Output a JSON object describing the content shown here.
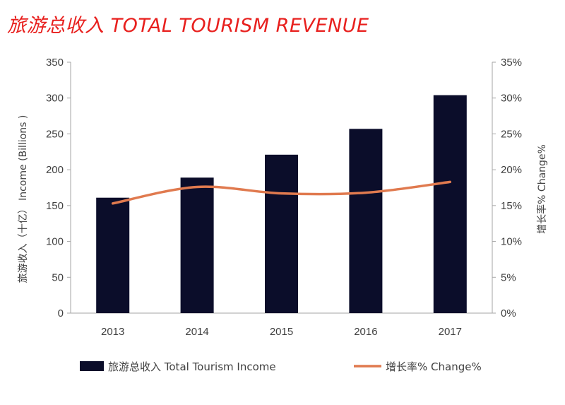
{
  "header": {
    "title": "旅游总收入 TOTAL TOURISM REVENUE"
  },
  "colors": {
    "title": "#e8201e",
    "bar": "#0b0d2a",
    "line": "#e07a4f",
    "axis": "#a6a6a6",
    "text": "#404040"
  },
  "chart_data": {
    "type": "bar",
    "title": "旅游总收入 TOTAL TOURISM REVENUE",
    "categories": [
      "2013",
      "2014",
      "2015",
      "2016",
      "2017"
    ],
    "series": [
      {
        "name": "旅游总收入 Total Tourism Income",
        "type": "bar",
        "axis": "left",
        "values": [
          161,
          189,
          221,
          257,
          304
        ]
      },
      {
        "name": "增长率% Change%",
        "type": "line",
        "axis": "right",
        "values": [
          15.3,
          17.6,
          16.7,
          16.8,
          18.3
        ]
      }
    ],
    "ylabel": "旅游收入（十亿） Income (Billions )",
    "y2label": "增长率% Change%",
    "ylim": [
      0,
      350
    ],
    "y2lim": [
      0,
      35
    ],
    "yticks": [
      "0",
      "50",
      "100",
      "150",
      "200",
      "250",
      "300",
      "350"
    ],
    "y2ticks": [
      "0%",
      "5%",
      "10%",
      "15%",
      "20%",
      "25%",
      "30%",
      "35%"
    ],
    "grid": false,
    "legend": "bottom"
  }
}
